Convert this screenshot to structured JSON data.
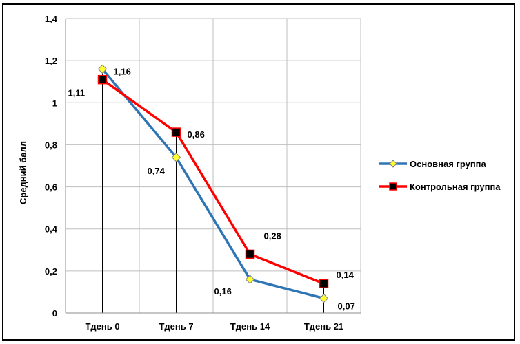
{
  "chart_data": {
    "type": "line",
    "title": "",
    "xlabel": "",
    "ylabel": "Средний балл",
    "categories": [
      "Тдень 0",
      "Тдень 7",
      "Тдень 14",
      "Тдень 21"
    ],
    "ylim": [
      0,
      1.4
    ],
    "yticks": [
      "0",
      "0,2",
      "0,4",
      "0,6",
      "0,8",
      "1",
      "1,2",
      "1,4"
    ],
    "ytick_values": [
      0,
      0.2,
      0.4,
      0.6,
      0.8,
      1.0,
      1.2,
      1.4
    ],
    "grid": true,
    "drop_lines": true,
    "legend_position": "right",
    "series": [
      {
        "name": "Основная группа",
        "values": [
          1.16,
          0.74,
          0.16,
          0.07
        ],
        "labels": [
          "1,16",
          "0,74",
          "0,16",
          "0,07"
        ],
        "line_color": "#2e75b6",
        "marker": "diamond",
        "marker_color": "#ffff33"
      },
      {
        "name": "Контрольная группа",
        "values": [
          1.11,
          0.86,
          0.28,
          0.14
        ],
        "labels": [
          "1,11",
          "0,86",
          "0,28",
          "0,14"
        ],
        "line_color": "#ff0000",
        "marker": "square",
        "marker_color": "#000000"
      }
    ]
  }
}
